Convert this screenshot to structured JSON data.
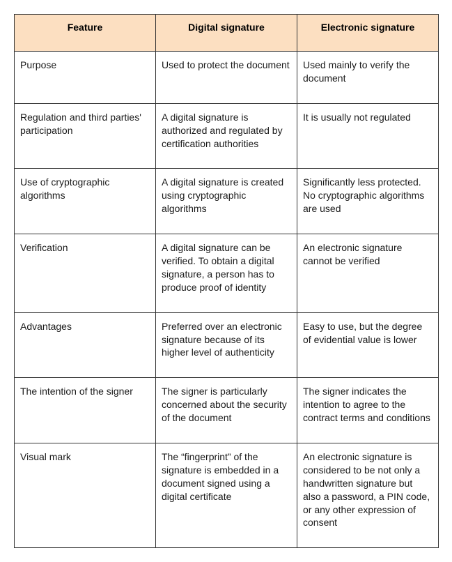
{
  "table": {
    "header_bg": "#fcdfc1",
    "border_color": "#333333",
    "columns": [
      "Feature",
      "Digital signature",
      "Electronic signature"
    ],
    "rows": [
      [
        "Purpose",
        "Used to protect the document",
        "Used mainly to verify the document"
      ],
      [
        "Regulation and third parties' participation",
        "A digital signature is authorized and regulated by certification authorities",
        "It is usually not regulated"
      ],
      [
        "Use of  cryptographic algorithms",
        "A digital signature is created using cryptographic algorithms",
        "Significantly less protected. No cryptographic algorithms are used"
      ],
      [
        "Verification",
        "A digital signature can be verified. To obtain a digital signature, a person has to produce proof of identity",
        "An electronic signature cannot be verified"
      ],
      [
        "Advantages",
        "Preferred over an electronic signature because of its higher level of authenticity",
        "Easy to use, but the degree of evidential value is lower"
      ],
      [
        "The intention of the signer",
        "The signer is particularly concerned about the security of the document",
        "The signer indicates the intention to agree to the contract terms and conditions"
      ],
      [
        "Visual mark",
        "The “fingerprint” of the signature is embedded in a document signed using a digital certificate",
        "An electronic signature is considered to be not only a handwritten signature but also a password, a PIN code, or any other expression of consent"
      ]
    ]
  }
}
